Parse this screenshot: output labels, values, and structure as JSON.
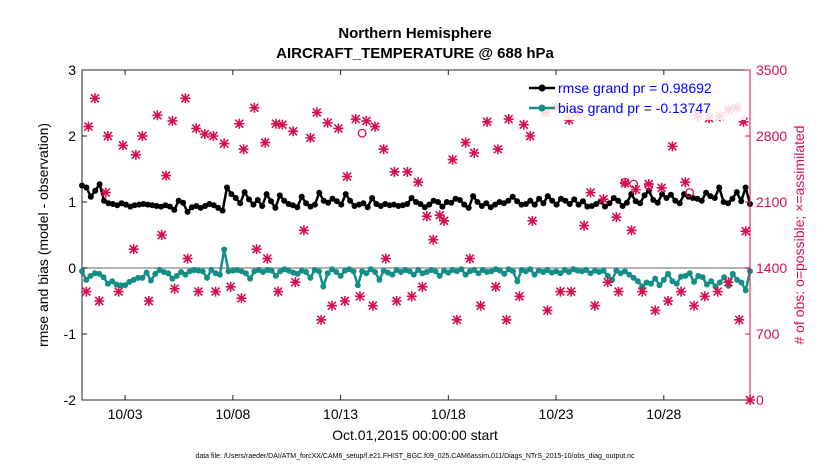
{
  "chart_data": {
    "type": "line",
    "title": "Northern Hemisphere",
    "subtitle": "AIRCRAFT_TEMPERATURE @ 688 hPa",
    "xlabel": "Oct.01,2015 00:00:00 start",
    "ylabel_left": "rmse and bias (model - observation)",
    "ylabel_right": "# of obs: o=possible; ×=assimilated",
    "footnote": "data file: /Users/raeder/DAI/ATM_forcXX/CAM6_setup/f.e21.FHIST_BGC.f09_025.CAM6assim.011/Diags_NTrS_2015-10/obs_diag_output.nc",
    "xlim": [
      1.0,
      32.0
    ],
    "ylim_left": [
      -2,
      3
    ],
    "ylim_right": [
      0,
      3500
    ],
    "x_ticks": [
      3,
      8,
      13,
      18,
      23,
      28
    ],
    "x_tick_labels": [
      "10/03",
      "10/08",
      "10/13",
      "10/18",
      "10/23",
      "10/28"
    ],
    "y_left_ticks": [
      -2,
      -1,
      0,
      1,
      2,
      3
    ],
    "y_left_tick_labels": [
      "-2",
      "-1",
      "0",
      "1",
      "2",
      "3"
    ],
    "y_right_ticks": [
      0,
      700,
      1400,
      2100,
      2800,
      3500
    ],
    "y_right_tick_labels": [
      "0",
      "700",
      "1400",
      "2100",
      "2800",
      "3500"
    ],
    "colors": {
      "rmse": "#000000",
      "bias": "#138f87",
      "obs": "#d6104d",
      "zero_line": "#b3b3b3",
      "legend_text": "#0000ff"
    },
    "legend": [
      {
        "name": "rmse",
        "label": "rmse grand pr = 0.98692"
      },
      {
        "name": "bias",
        "label": "bias grand pr = -0.13747"
      }
    ],
    "series": [
      {
        "name": "rmse",
        "axis": "left",
        "values": [
          1.25,
          1.22,
          1.08,
          1.17,
          1.27,
          1.02,
          0.98,
          0.97,
          0.95,
          0.98,
          0.96,
          0.93,
          0.95,
          0.96,
          0.97,
          0.96,
          0.95,
          0.94,
          0.93,
          0.95,
          0.93,
          0.88,
          1.02,
          0.99,
          0.85,
          0.92,
          0.94,
          0.91,
          0.94,
          0.97,
          0.95,
          0.91,
          0.87,
          1.22,
          1.12,
          1.06,
          0.98,
          1.15,
          1.04,
          0.96,
          1.03,
          0.94,
          1.12,
          1.01,
          0.91,
          1.1,
          1.02,
          0.97,
          0.95,
          0.92,
          1.08,
          0.98,
          0.93,
          0.96,
          1.14,
          1.02,
          0.99,
          1.05,
          1.01,
          0.96,
          1.12,
          1.02,
          0.94,
          0.96,
          0.98,
          0.92,
          1.06,
          0.97,
          0.94,
          0.97,
          0.95,
          0.96,
          0.94,
          0.95,
          0.97,
          1.06,
          1.0,
          0.97,
          0.92,
          0.96,
          1.02,
          1.0,
          0.93,
          1.0,
          0.99,
          1.05,
          1.03,
          0.96,
          0.91,
          1.09,
          1.0,
          0.94,
          0.98,
          0.92,
          0.96,
          1.0,
          0.98,
          1.02,
          1.08,
          1.01,
          0.96,
          0.97,
          1.02,
          0.96,
          1.05,
          0.98,
          1.09,
          1.02,
          0.96,
          1.05,
          1.02,
          0.97,
          1.04,
          0.96,
          1.01,
          0.93,
          0.94,
          0.97,
          1.01,
          0.93,
          0.98,
          1.06,
          1.02,
          0.94,
          0.99,
          1.12,
          1.01,
          0.98,
          1.1,
          1.17,
          1.03,
          0.99,
          1.12,
          1.06,
          1.11,
          1.02,
          0.98,
          1.12,
          1.08,
          1.06,
          1.05,
          1.02,
          1.14,
          1.09,
          1.06,
          1.22,
          1.0,
          0.98,
          1.05,
          1.15,
          1.01,
          1.22,
          0.97
        ]
      },
      {
        "name": "bias",
        "axis": "left",
        "values": [
          -0.05,
          -0.18,
          -0.12,
          -0.08,
          -0.09,
          -0.14,
          -0.24,
          -0.2,
          -0.25,
          -0.26,
          -0.26,
          -0.21,
          -0.18,
          -0.15,
          -0.15,
          -0.07,
          -0.19,
          -0.09,
          -0.03,
          -0.06,
          -0.08,
          -0.16,
          -0.12,
          -0.06,
          -0.1,
          -0.05,
          -0.03,
          -0.04,
          -0.05,
          -0.15,
          -0.03,
          -0.08,
          -0.1,
          0.28,
          -0.05,
          -0.04,
          -0.03,
          -0.05,
          -0.08,
          -0.16,
          -0.05,
          -0.03,
          -0.06,
          -0.03,
          -0.04,
          -0.12,
          -0.05,
          -0.02,
          -0.04,
          -0.07,
          -0.09,
          -0.04,
          -0.06,
          -0.15,
          -0.03,
          -0.05,
          -0.28,
          -0.08,
          -0.02,
          -0.06,
          -0.12,
          -0.04,
          -0.02,
          -0.05,
          -0.26,
          -0.05,
          -0.08,
          -0.02,
          -0.06,
          -0.18,
          -0.04,
          -0.07,
          -0.1,
          -0.03,
          -0.06,
          -0.03,
          -0.05,
          -0.1,
          -0.03,
          -0.08,
          -0.06,
          -0.03,
          -0.05,
          -0.12,
          -0.04,
          -0.07,
          -0.03,
          -0.05,
          -0.02,
          -0.1,
          -0.05,
          -0.03,
          -0.08,
          -0.03,
          -0.06,
          -0.05,
          -0.02,
          -0.04,
          -0.09,
          -0.02,
          -0.05,
          -0.2,
          -0.03,
          -0.05,
          -0.02,
          -0.1,
          -0.04,
          -0.06,
          -0.03,
          -0.07,
          -0.05,
          -0.08,
          -0.03,
          -0.06,
          -0.02,
          -0.04,
          -0.05,
          -0.03,
          -0.08,
          -0.04,
          -0.06,
          -0.04,
          -0.12,
          -0.18,
          -0.04,
          -0.08,
          -0.05,
          -0.1,
          -0.15,
          -0.2,
          -0.28,
          -0.22,
          -0.24,
          -0.16,
          -0.26,
          -0.18,
          -0.09,
          -0.2,
          -0.24,
          -0.13,
          -0.12,
          -0.08,
          -0.21,
          -0.12,
          -0.14,
          -0.25,
          -0.2,
          -0.28,
          -0.22,
          -0.14,
          -0.27,
          -0.09,
          -0.18,
          -0.22,
          -0.34,
          -0.05
        ]
      },
      {
        "name": "obs_assimilated",
        "axis": "right",
        "x": [
          1.3,
          1.6,
          2.2,
          2.9,
          3.5,
          3.8,
          4.5,
          4.9,
          5.2,
          5.8,
          6.3,
          6.7,
          7.1,
          7.6,
          8.3,
          8.5,
          9.0,
          9.5,
          10.0,
          10.3,
          10.8,
          11.6,
          11.9,
          12.4,
          12.9,
          13.3,
          13.7,
          14.2,
          14.6,
          15.0,
          15.5,
          16.1,
          16.6,
          17.0,
          17.6,
          18.2,
          18.8,
          19.2,
          19.8,
          20.3,
          20.8,
          21.5,
          21.8,
          22.5,
          23.0,
          23.6,
          24.0,
          24.6,
          25.2,
          25.8,
          26.2,
          26.7,
          27.3,
          27.9,
          28.4,
          29.0,
          29.6,
          30.1,
          30.6,
          31.0,
          31.4,
          31.7
        ],
        "values": [
          2900,
          3200,
          2800,
          2700,
          2600,
          2800,
          3020,
          2380,
          2960,
          3200,
          2880,
          2820,
          2800,
          2720,
          2930,
          2660,
          3100,
          2730,
          2930,
          2920,
          2850,
          2780,
          3050,
          2940,
          2880,
          2370,
          2980,
          2960,
          2900,
          2660,
          2420,
          2420,
          2310,
          1950,
          1960,
          2550,
          2730,
          2620,
          2950,
          2660,
          2980,
          2920,
          2800,
          3050,
          3110,
          2970,
          3050,
          2200,
          2130,
          1940,
          2300,
          2230,
          2290,
          2250,
          2690,
          2310,
          3020,
          2990,
          3010,
          3080,
          3100,
          2950
        ]
      },
      {
        "name": "obs_possible",
        "axis": "right",
        "x": [
          14.0,
          26.2,
          26.6,
          27.3,
          29.2
        ],
        "values": [
          2830,
          2310,
          2290,
          2270,
          2200
        ]
      },
      {
        "name": "obs_low",
        "axis": "right",
        "x": [
          1.2,
          1.8,
          2.1,
          2.7,
          3.4,
          4.1,
          4.7,
          5.3,
          5.9,
          6.4,
          7.2,
          7.9,
          8.4,
          9.1,
          9.6,
          10.1,
          10.9,
          11.3,
          12.1,
          12.6,
          13.2,
          13.9,
          14.5,
          15.1,
          15.6,
          16.3,
          16.8,
          17.3,
          17.8,
          18.4,
          19.0,
          19.5,
          20.2,
          20.7,
          21.3,
          21.9,
          22.6,
          23.2,
          23.7,
          24.3,
          24.8,
          25.4,
          25.9,
          26.5,
          27.0,
          27.6,
          28.2,
          28.8,
          29.4,
          29.9,
          30.5,
          31.0,
          31.5,
          31.8
        ],
        "values": [
          1150,
          1050,
          2200,
          1150,
          1600,
          1050,
          1750,
          1180,
          1500,
          1150,
          1150,
          1200,
          1080,
          1600,
          1500,
          1150,
          1250,
          1800,
          850,
          1000,
          1050,
          1100,
          1000,
          1500,
          1050,
          1100,
          1200,
          1700,
          1900,
          850,
          1500,
          1000,
          1200,
          850,
          1100,
          1900,
          950,
          1150,
          1150,
          1850,
          1000,
          1250,
          1150,
          1800,
          1150,
          950,
          1050,
          1150,
          1000,
          1100,
          1150,
          1250,
          850,
          1790
        ]
      }
    ]
  }
}
